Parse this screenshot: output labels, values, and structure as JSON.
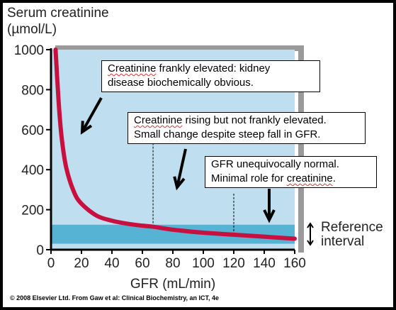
{
  "chart_data": {
    "type": "line",
    "title": "",
    "ylabel_line1": "Serum creatinine",
    "ylabel_line2": "(µmol/L)",
    "xlabel": "GFR (mL/min)",
    "xlim": [
      0,
      160
    ],
    "ylim": [
      0,
      1000
    ],
    "xticks": [
      0,
      20,
      40,
      60,
      80,
      100,
      120,
      140,
      160
    ],
    "yticks": [
      0,
      200,
      400,
      600,
      800,
      1000
    ],
    "series": [
      {
        "color": "#c8103f",
        "x": [
          3,
          5,
          7,
          10,
          15,
          20,
          30,
          40,
          50,
          60,
          67,
          80,
          100,
          120,
          140,
          160
        ],
        "values": [
          1000,
          740,
          560,
          410,
          290,
          230,
          170,
          145,
          130,
          120,
          115,
          100,
          85,
          75,
          65,
          55
        ]
      }
    ],
    "reference_interval": {
      "low": 30,
      "high": 125,
      "label_line1": "Reference",
      "label_line2": "interval",
      "color": "#56b3d3"
    },
    "background_color": "#bfdff0",
    "markers": [
      67,
      120
    ],
    "annotations": [
      {
        "parts": [
          {
            "text": "Creatinine",
            "squiggle": true
          },
          {
            "text": " frankly elevated: kidney\ndisease biochemically obvious.",
            "squiggle": false
          }
        ]
      },
      {
        "parts": [
          {
            "text": "Creatinine",
            "squiggle": true
          },
          {
            "text": " rising but not frankly elevated.\nSmall change despite steep fall in GFR.",
            "squiggle": false
          }
        ]
      },
      {
        "parts": [
          {
            "text": "GFR unequivocally normal.\nMinimal role for ",
            "squiggle": false
          },
          {
            "text": "creatinine",
            "squiggle": true
          },
          {
            "text": ".",
            "squiggle": false
          }
        ]
      }
    ]
  },
  "copyright": "© 2008 Elsevier Ltd. From Gaw et al: Clinical Biochemistry, an ICT, 4e"
}
